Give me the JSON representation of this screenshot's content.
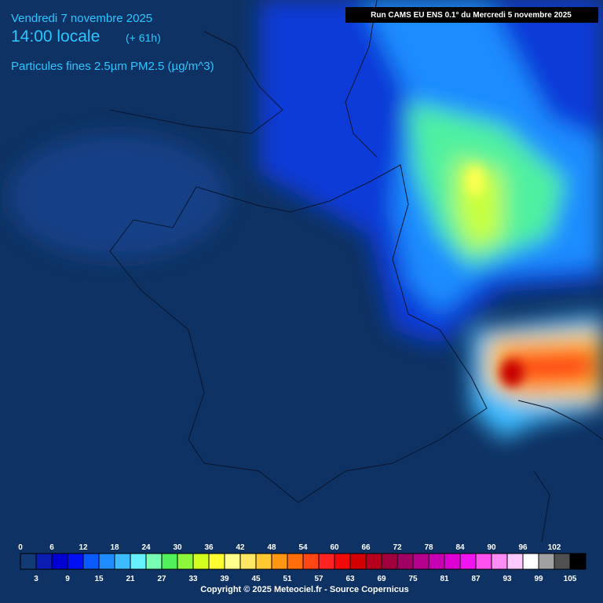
{
  "header": {
    "date": "Vendredi 7 novembre 2025",
    "time": "14:00 locale",
    "lead": "(+ 61h)",
    "variable": "Particules fines 2.5µm PM2.5 (µg/m^3)",
    "run": "Run CAMS EU ENS 0.1° du Mercredi 5 novembre 2025"
  },
  "legend": {
    "ticks": [
      0,
      3,
      6,
      9,
      12,
      15,
      18,
      21,
      24,
      27,
      30,
      33,
      36,
      39,
      42,
      45,
      48,
      51,
      54,
      57,
      60,
      63,
      66,
      69,
      72,
      75,
      78,
      81,
      84,
      87,
      90,
      93,
      96,
      99,
      102,
      105
    ],
    "colors": [
      "#123a74",
      "#0a1eb4",
      "#0000d2",
      "#0010f5",
      "#0a5aff",
      "#1e8cff",
      "#3cbcff",
      "#64f0ff",
      "#78ffb4",
      "#50f05a",
      "#8cf53c",
      "#d2ff1e",
      "#ffff32",
      "#ffff8c",
      "#ffe664",
      "#ffc832",
      "#ff9614",
      "#ff6e0a",
      "#ff4614",
      "#ff2323",
      "#f00a0a",
      "#d20000",
      "#b4001e",
      "#a0003c",
      "#a00064",
      "#b4008c",
      "#c800b4",
      "#dc00d2",
      "#f014f0",
      "#ff50f0",
      "#ff8cf5",
      "#ffc8ff",
      "#ffffff",
      "#a0a0a0",
      "#505050",
      "#000000"
    ]
  },
  "footer": {
    "copyright": "Copyright © 2025 Meteociel.fr - Source Copernicus"
  }
}
